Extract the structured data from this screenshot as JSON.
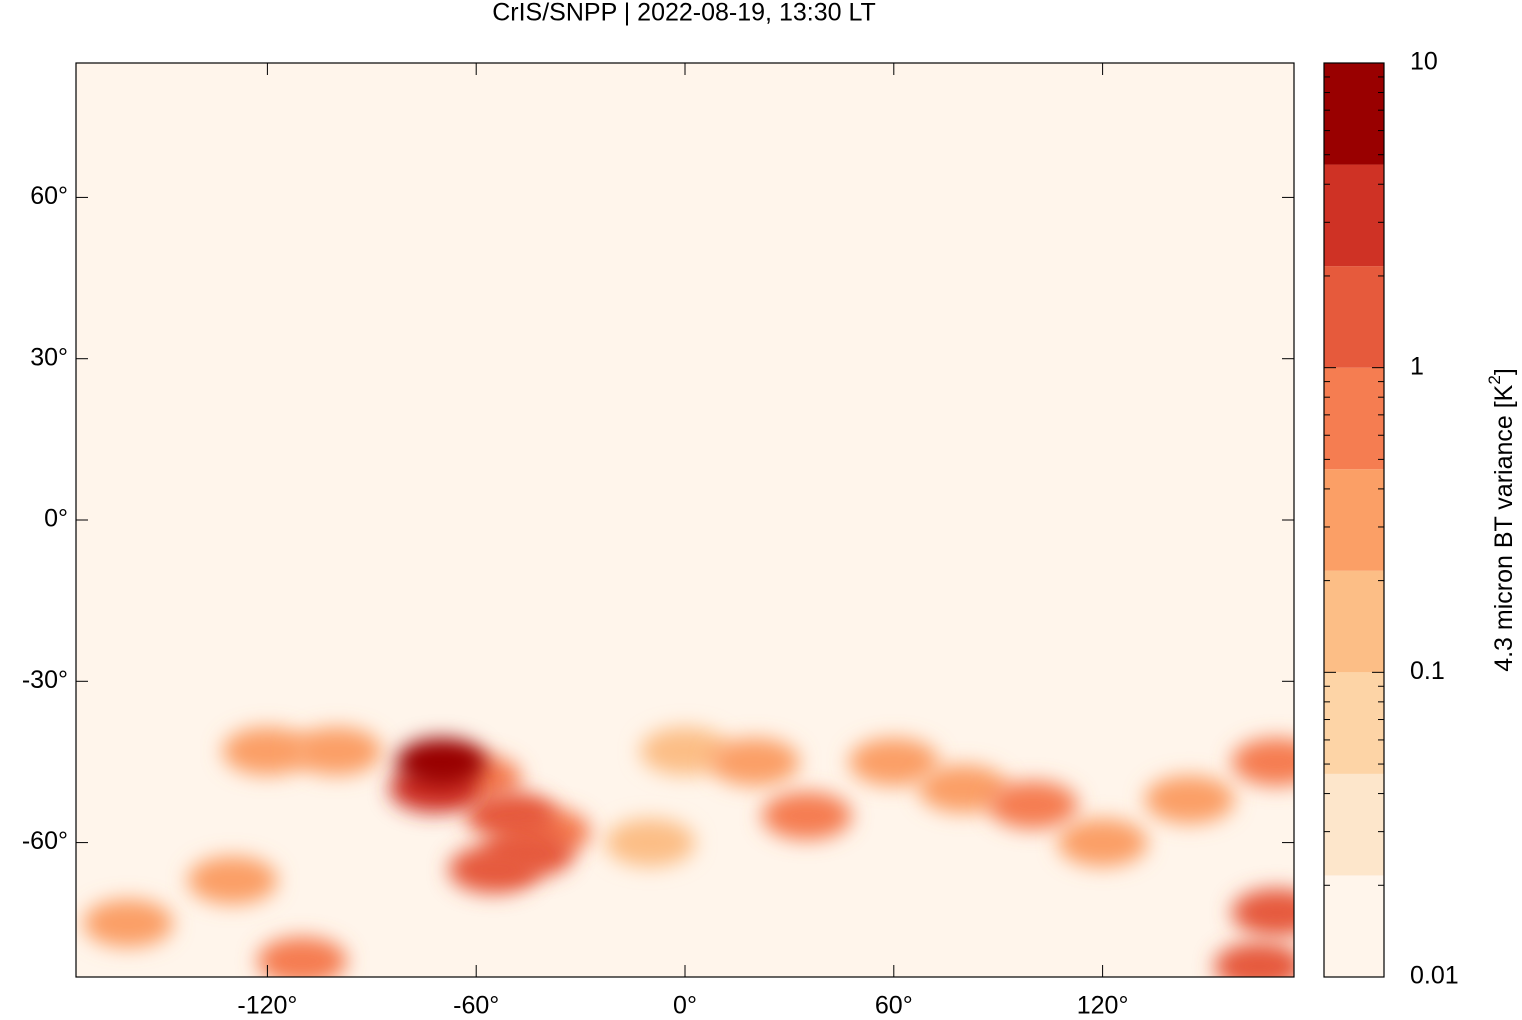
{
  "chart_data": {
    "type": "geomap",
    "title": "CrIS/SNPP | 2022-08-19, 13:30 LT",
    "xlim": [
      -175,
      175
    ],
    "ylim": [
      -85,
      85
    ],
    "xticks": [
      {
        "value": -120,
        "label": "-120°"
      },
      {
        "value": -60,
        "label": "-60°"
      },
      {
        "value": 0,
        "label": "0°"
      },
      {
        "value": 60,
        "label": "60°"
      },
      {
        "value": 120,
        "label": "120°"
      }
    ],
    "yticks": [
      {
        "value": 60,
        "label": "60°"
      },
      {
        "value": 30,
        "label": "30°"
      },
      {
        "value": 0,
        "label": "0°"
      },
      {
        "value": -30,
        "label": "-30°"
      },
      {
        "value": -60,
        "label": "-60°"
      }
    ],
    "background_color": "#fff5eb",
    "hotspots": {
      "x": [
        -120,
        -100,
        0,
        -10,
        20,
        60,
        80,
        120,
        145,
        -160,
        -130,
        170,
        -40,
        -60,
        -50,
        35,
        100,
        -110,
        170,
        -45,
        -55,
        165,
        -72,
        -70
      ],
      "y": [
        -43,
        -43,
        -43,
        -60,
        -45,
        -45,
        -50,
        -60,
        -52,
        -75,
        -67,
        -45,
        -58,
        -48,
        -55,
        -55,
        -53,
        -82,
        -73,
        -62,
        -65,
        -83,
        -50,
        -45
      ],
      "values": [
        0.3,
        0.3,
        0.2,
        0.2,
        0.3,
        0.3,
        0.4,
        0.3,
        0.4,
        0.3,
        0.3,
        0.5,
        0.8,
        0.8,
        1,
        0.8,
        0.8,
        0.5,
        1,
        1.5,
        2,
        1.5,
        3,
        5
      ]
    },
    "colorbar": {
      "label_parts": [
        "4.3 micron BT variance [K",
        "2",
        "]"
      ],
      "scale": "log",
      "lim": [
        0.01,
        10
      ],
      "ticks": [
        0.01,
        0.1,
        1,
        10
      ],
      "colors": [
        "#fff5eb",
        "#fde6cb",
        "#fdd4a6",
        "#fcbe86",
        "#fb9f66",
        "#f57d51",
        "#e65a3c",
        "#cf3225",
        "#990000"
      ]
    }
  }
}
